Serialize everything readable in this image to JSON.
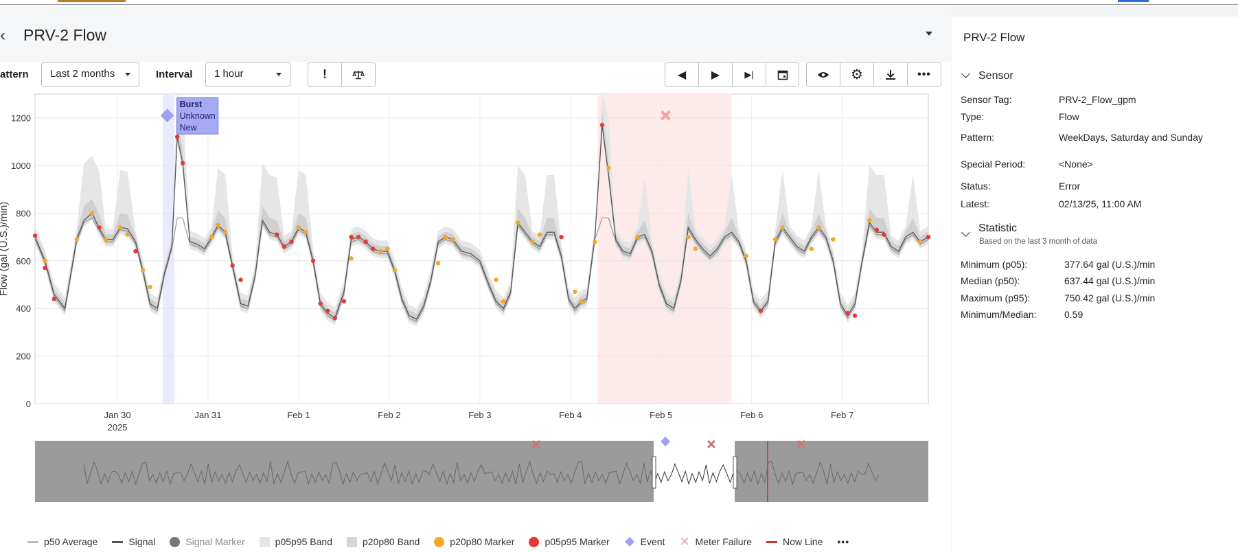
{
  "header": {
    "title": "PRV-2 Flow"
  },
  "toolbar": {
    "pattern_label": "attern",
    "pattern_value": "Last 2 months",
    "interval_label": "Interval",
    "interval_value": "1 hour"
  },
  "icons": {
    "back": "chevron-left-icon",
    "alert": "exclamation-icon",
    "scale": "balance-scale-icon",
    "prev": "step-back-icon",
    "play": "play-icon",
    "end": "skip-end-icon",
    "calendar": "calendar-icon",
    "eye": "eye-icon",
    "gear": "gear-icon",
    "download": "download-icon",
    "more": "more-icon"
  },
  "colors": {
    "signal": "#555555",
    "p50": "#9a9a9a",
    "band_outer": "#e6e6e6",
    "band_inner": "#d0d0d0",
    "p20p80_marker": "#f5a623",
    "p05p95_marker": "#e53935",
    "event": "#9da2f2",
    "meter_failure": "#f4a3a3",
    "event_band": "#e9eafb",
    "failure_band": "#fcebea",
    "now_line": "#d32f2f"
  },
  "chart_data": {
    "type": "line",
    "ylabel": "Flow (gal (U.S.)/min)",
    "ylim": [
      0,
      1300
    ],
    "yticks": [
      0,
      200,
      400,
      600,
      800,
      1000,
      1200
    ],
    "x_tick_labels": [
      "Jan 30",
      "Jan 31",
      "Feb 1",
      "Feb 2",
      "Feb 3",
      "Feb 4",
      "Feb 5",
      "Feb 6",
      "Feb 7"
    ],
    "x_year_label": "2025",
    "x_ticks": [
      30,
      31,
      32,
      33,
      34,
      35,
      36,
      37,
      38
    ],
    "xlim": [
      29.09,
      38.95
    ],
    "series": [
      {
        "name": "Signal",
        "points": [
          [
            29.09,
            700
          ],
          [
            29.2,
            600
          ],
          [
            29.3,
            460
          ],
          [
            29.42,
            400
          ],
          [
            29.55,
            690
          ],
          [
            29.63,
            770
          ],
          [
            29.72,
            800
          ],
          [
            29.8,
            735
          ],
          [
            29.87,
            690
          ],
          [
            29.95,
            690
          ],
          [
            30.03,
            740
          ],
          [
            30.11,
            735
          ],
          [
            30.2,
            680
          ],
          [
            30.28,
            560
          ],
          [
            30.36,
            420
          ],
          [
            30.44,
            400
          ],
          [
            30.52,
            550
          ],
          [
            30.6,
            660
          ],
          [
            30.66,
            1120
          ],
          [
            30.72,
            1010
          ],
          [
            30.8,
            680
          ],
          [
            30.88,
            670
          ],
          [
            30.96,
            650
          ],
          [
            31.04,
            700
          ],
          [
            31.11,
            750
          ],
          [
            31.19,
            720
          ],
          [
            31.27,
            580
          ],
          [
            31.36,
            420
          ],
          [
            31.44,
            410
          ],
          [
            31.52,
            540
          ],
          [
            31.6,
            770
          ],
          [
            31.68,
            720
          ],
          [
            31.76,
            710
          ],
          [
            31.84,
            660
          ],
          [
            31.92,
            680
          ],
          [
            32.0,
            740
          ],
          [
            32.08,
            720
          ],
          [
            32.16,
            600
          ],
          [
            32.24,
            420
          ],
          [
            32.32,
            380
          ],
          [
            32.4,
            360
          ],
          [
            32.5,
            470
          ],
          [
            32.58,
            690
          ],
          [
            32.66,
            700
          ],
          [
            32.74,
            680
          ],
          [
            32.82,
            650
          ],
          [
            32.9,
            640
          ],
          [
            32.98,
            640
          ],
          [
            33.06,
            560
          ],
          [
            33.14,
            440
          ],
          [
            33.22,
            370
          ],
          [
            33.3,
            355
          ],
          [
            33.38,
            410
          ],
          [
            33.46,
            520
          ],
          [
            33.54,
            680
          ],
          [
            33.62,
            700
          ],
          [
            33.7,
            690
          ],
          [
            33.8,
            640
          ],
          [
            33.9,
            630
          ],
          [
            34.0,
            600
          ],
          [
            34.1,
            500
          ],
          [
            34.18,
            430
          ],
          [
            34.26,
            400
          ],
          [
            34.34,
            470
          ],
          [
            34.42,
            760
          ],
          [
            34.5,
            720
          ],
          [
            34.58,
            680
          ],
          [
            34.66,
            660
          ],
          [
            34.74,
            720
          ],
          [
            34.82,
            720
          ],
          [
            34.9,
            620
          ],
          [
            34.98,
            440
          ],
          [
            35.05,
            400
          ],
          [
            35.12,
            430
          ],
          [
            35.18,
            440
          ],
          [
            35.27,
            700
          ],
          [
            35.35,
            1170
          ],
          [
            35.42,
            960
          ],
          [
            35.5,
            690
          ],
          [
            35.58,
            640
          ],
          [
            35.66,
            630
          ],
          [
            35.74,
            700
          ],
          [
            35.82,
            710
          ],
          [
            35.9,
            640
          ],
          [
            35.98,
            500
          ],
          [
            36.06,
            420
          ],
          [
            36.14,
            400
          ],
          [
            36.22,
            520
          ],
          [
            36.3,
            740
          ],
          [
            36.38,
            690
          ],
          [
            36.46,
            650
          ],
          [
            36.54,
            620
          ],
          [
            36.62,
            650
          ],
          [
            36.7,
            700
          ],
          [
            36.78,
            720
          ],
          [
            36.86,
            680
          ],
          [
            36.94,
            600
          ],
          [
            37.02,
            430
          ],
          [
            37.1,
            390
          ],
          [
            37.18,
            430
          ],
          [
            37.26,
            680
          ],
          [
            37.34,
            740
          ],
          [
            37.42,
            700
          ],
          [
            37.5,
            660
          ],
          [
            37.58,
            640
          ],
          [
            37.66,
            700
          ],
          [
            37.74,
            740
          ],
          [
            37.82,
            700
          ],
          [
            37.9,
            600
          ],
          [
            37.98,
            420
          ],
          [
            38.06,
            370
          ],
          [
            38.14,
            420
          ],
          [
            38.22,
            600
          ],
          [
            38.3,
            760
          ],
          [
            38.38,
            720
          ],
          [
            38.46,
            720
          ],
          [
            38.54,
            660
          ],
          [
            38.62,
            640
          ],
          [
            38.7,
            700
          ],
          [
            38.78,
            720
          ],
          [
            38.86,
            680
          ],
          [
            38.95,
            700
          ]
        ]
      }
    ],
    "p20p80_markers": [
      [
        29.2,
        600
      ],
      [
        29.55,
        690
      ],
      [
        29.72,
        800
      ],
      [
        29.87,
        690
      ],
      [
        30.03,
        740
      ],
      [
        30.11,
        710
      ],
      [
        30.28,
        560
      ],
      [
        30.36,
        490
      ],
      [
        31.04,
        700
      ],
      [
        31.11,
        750
      ],
      [
        31.19,
        720
      ],
      [
        32.0,
        740
      ],
      [
        32.08,
        720
      ],
      [
        32.58,
        610
      ],
      [
        32.9,
        640
      ],
      [
        32.98,
        650
      ],
      [
        33.06,
        560
      ],
      [
        33.54,
        590
      ],
      [
        33.62,
        700
      ],
      [
        33.7,
        690
      ],
      [
        34.18,
        520
      ],
      [
        34.26,
        430
      ],
      [
        34.42,
        760
      ],
      [
        34.58,
        680
      ],
      [
        34.66,
        710
      ],
      [
        35.05,
        470
      ],
      [
        35.12,
        430
      ],
      [
        35.27,
        680
      ],
      [
        35.42,
        990
      ],
      [
        35.74,
        700
      ],
      [
        36.3,
        700
      ],
      [
        36.38,
        650
      ],
      [
        36.94,
        620
      ],
      [
        37.26,
        690
      ],
      [
        37.34,
        740
      ],
      [
        37.66,
        650
      ],
      [
        37.74,
        740
      ],
      [
        37.9,
        690
      ],
      [
        38.3,
        770
      ],
      [
        38.86,
        680
      ]
    ],
    "p05p95_markers": [
      [
        29.09,
        705
      ],
      [
        29.2,
        570
      ],
      [
        29.3,
        440
      ],
      [
        29.8,
        740
      ],
      [
        30.2,
        640
      ],
      [
        30.66,
        1120
      ],
      [
        30.72,
        1010
      ],
      [
        31.27,
        580
      ],
      [
        31.36,
        520
      ],
      [
        32.16,
        600
      ],
      [
        32.24,
        420
      ],
      [
        32.32,
        390
      ],
      [
        32.4,
        360
      ],
      [
        32.5,
        430
      ],
      [
        32.58,
        700
      ],
      [
        32.66,
        700
      ],
      [
        32.74,
        680
      ],
      [
        32.82,
        650
      ],
      [
        31.76,
        710
      ],
      [
        31.84,
        660
      ],
      [
        31.92,
        680
      ],
      [
        34.9,
        700
      ],
      [
        35.35,
        1170
      ],
      [
        37.1,
        390
      ],
      [
        38.06,
        380
      ],
      [
        38.14,
        370
      ],
      [
        38.38,
        730
      ],
      [
        38.46,
        710
      ],
      [
        38.95,
        700
      ]
    ],
    "events": [
      {
        "x": 30.55,
        "y": 1210,
        "lines": [
          "Burst",
          "Unknown",
          "New"
        ]
      }
    ],
    "event_band": [
      30.5,
      30.63
    ],
    "meter_failure": {
      "x": 36.05,
      "y": 1210
    },
    "failure_band": [
      35.3,
      36.78
    ]
  },
  "navigator": {
    "now_line_fraction": 0.82
  },
  "legend": {
    "items": [
      "p50 Average",
      "Signal",
      "Signal Marker",
      "p05p95 Band",
      "p20p80 Band",
      "p20p80 Marker",
      "p05p95 Marker",
      "Event",
      "Meter Failure",
      "Now Line"
    ],
    "more": "•••"
  },
  "panel": {
    "title": "PRV-2 Flow",
    "sensor_header": "Sensor",
    "sensor": [
      {
        "k": "Sensor Tag:",
        "v": "PRV-2_Flow_gpm"
      },
      {
        "k": "Type:",
        "v": "Flow"
      },
      {
        "k": "Pattern:",
        "v": "WeekDays, Saturday and Sunday"
      },
      {
        "k": "Special Period:",
        "v": "<None>"
      },
      {
        "k": "Status:",
        "v": "Error"
      },
      {
        "k": "Latest:",
        "v": "02/13/25, 11:00 AM"
      }
    ],
    "statistic_header": "Statistic",
    "statistic_note": "Based on the last 3 month of data",
    "statistic": [
      {
        "k": "Minimum (p05):",
        "v": "377.64 gal (U.S.)/min"
      },
      {
        "k": "Median (p50):",
        "v": "637.44 gal (U.S.)/min"
      },
      {
        "k": "Maximum (p95):",
        "v": "750.42 gal (U.S.)/min"
      },
      {
        "k": "Minimum/Median:",
        "v": "0.59"
      }
    ]
  }
}
